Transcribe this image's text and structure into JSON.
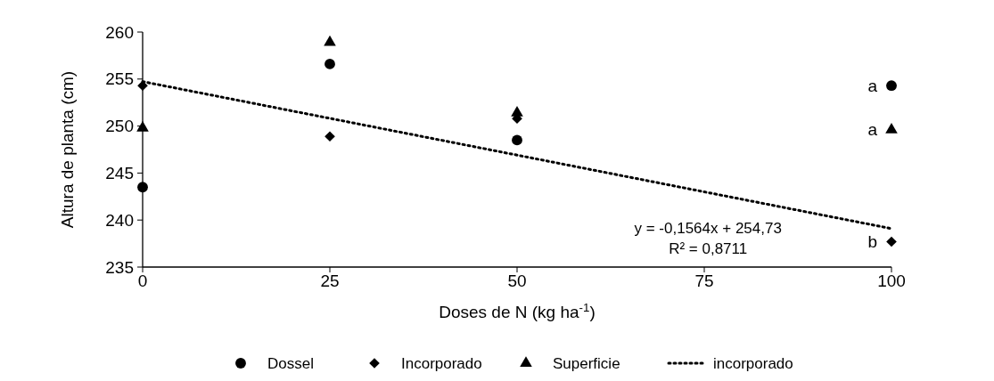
{
  "chart_data": {
    "type": "scatter",
    "xlabel": "Doses de N (kg ha$^{-1}$)",
    "ylabel": "Altura de planta (cm)",
    "x": [
      0,
      25,
      50,
      100
    ],
    "series": [
      {
        "name": "Dossel",
        "color": "#000000",
        "marker": "circle",
        "values": [
          243.5,
          256.6,
          248.5,
          254.3
        ],
        "value_labels": [
          null,
          null,
          null,
          "a"
        ]
      },
      {
        "name": "Incorporado",
        "color": "#000000",
        "marker": "diamond",
        "values": [
          254.3,
          248.9,
          250.8,
          237.7
        ],
        "value_labels": [
          null,
          null,
          null,
          "b"
        ]
      },
      {
        "name": "Superficie",
        "color": "#000000",
        "marker": "triangle",
        "values": [
          249.8,
          258.9,
          251.4,
          249.6
        ],
        "value_labels": [
          null,
          null,
          null,
          "a"
        ]
      },
      {
        "name": "incorporado",
        "type": "line",
        "color": "#000000",
        "marker": "none",
        "line_style": "dotted",
        "x": [
          0,
          100
        ],
        "values": [
          254.73,
          239.09
        ]
      }
    ],
    "xlim": [
      0,
      100
    ],
    "xticks": [
      0,
      25,
      50,
      75,
      100
    ],
    "ylim": [
      235,
      260
    ],
    "yticks": [
      235,
      240,
      245,
      250,
      255,
      260
    ],
    "grid": false,
    "legend": "bottom",
    "annotations": [
      "y = -0,1564x + 254,73",
      "R² = 0,8711"
    ]
  }
}
